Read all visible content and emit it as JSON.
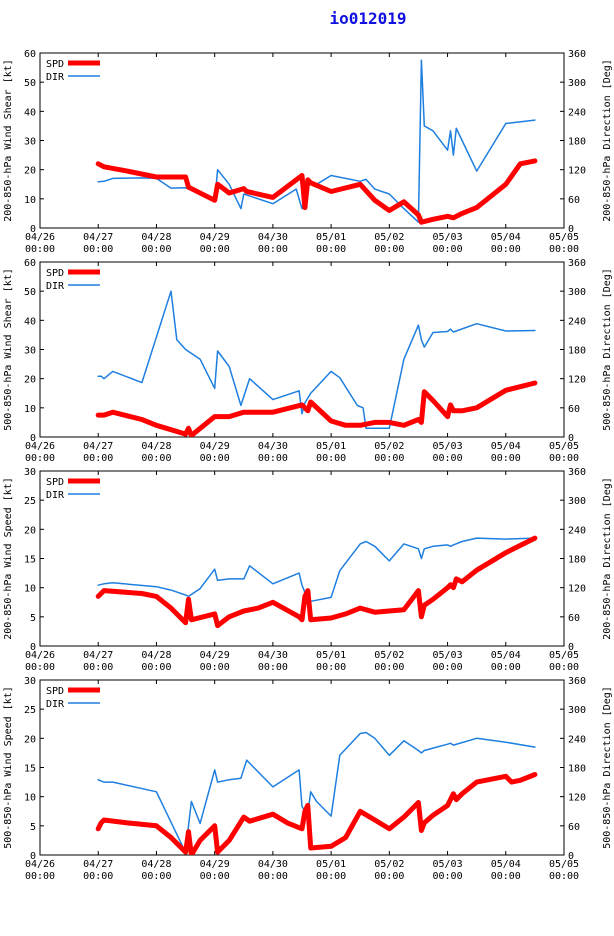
{
  "title": "io012019",
  "colors": {
    "spd": "#ff0000",
    "dir": "#1e7fe0",
    "axis": "#000000"
  },
  "legend": {
    "spd": "SPD",
    "dir": "DIR"
  },
  "x_ticks": [
    {
      "date": "04/26",
      "time": "00:00"
    },
    {
      "date": "04/27",
      "time": "00:00"
    },
    {
      "date": "04/28",
      "time": "00:00"
    },
    {
      "date": "04/29",
      "time": "00:00"
    },
    {
      "date": "04/30",
      "time": "00:00"
    },
    {
      "date": "05/01",
      "time": "00:00"
    },
    {
      "date": "05/02",
      "time": "00:00"
    },
    {
      "date": "05/03",
      "time": "00:00"
    },
    {
      "date": "05/04",
      "time": "00:00"
    },
    {
      "date": "05/05",
      "time": "00:00"
    }
  ],
  "chart_data": [
    {
      "type": "line",
      "ylabel_left": "200-850-hPa Wind Shear [kt]",
      "ylabel_right": "200-850-hPa Direction [Deg]",
      "xlim": [
        0,
        9
      ],
      "ylim": [
        0,
        60
      ],
      "y2lim": [
        0,
        360
      ],
      "yticks": [
        0,
        10,
        20,
        30,
        40,
        50,
        60
      ],
      "y2ticks": [
        0,
        60,
        120,
        180,
        240,
        300,
        360
      ],
      "series": [
        {
          "name": "SPD",
          "axis": "left",
          "x": [
            1.0,
            1.1,
            1.5,
            2.0,
            2.5,
            2.55,
            3.0,
            3.05,
            3.25,
            3.5,
            3.55,
            4.0,
            4.5,
            4.55,
            4.6,
            4.65,
            5.0,
            5.5,
            5.75,
            6.0,
            6.25,
            6.5,
            6.55,
            6.75,
            7.0,
            7.1,
            7.25,
            7.5,
            8.0,
            8.25,
            8.5
          ],
          "y": [
            22,
            21,
            19.5,
            17.5,
            17.5,
            14,
            9.5,
            15,
            12,
            13.5,
            12.5,
            10.5,
            18,
            7,
            16.5,
            15.5,
            12.5,
            15,
            9.5,
            6,
            9,
            4.5,
            2,
            3,
            4,
            3.5,
            5,
            7,
            15,
            22,
            23
          ]
        },
        {
          "name": "DIR",
          "axis": "right",
          "x": [
            1.0,
            1.1,
            1.25,
            1.75,
            2.0,
            2.25,
            2.5,
            2.75,
            3.0,
            3.05,
            3.25,
            3.45,
            3.5,
            4.0,
            4.4,
            4.5,
            4.55,
            4.6,
            4.65,
            4.75,
            5.0,
            5.5,
            5.6,
            5.75,
            6.0,
            6.25,
            6.5,
            6.55,
            6.6,
            6.75,
            7.0,
            7.05,
            7.1,
            7.15,
            7.25,
            7.5,
            8.0,
            8.5
          ],
          "y": [
            95,
            96,
            102,
            103,
            102,
            82,
            83,
            70,
            55,
            120,
            90,
            40,
            70,
            50,
            80,
            40,
            60,
            80,
            96,
            90,
            108,
            96,
            100,
            80,
            70,
            40,
            12,
            345,
            210,
            200,
            160,
            200,
            150,
            205,
            180,
            117,
            215,
            222
          ]
        }
      ]
    },
    {
      "type": "line",
      "ylabel_left": "500-850-hPa Wind Shear [kt]",
      "ylabel_right": "500-850-hPa Direction [Deg]",
      "xlim": [
        0,
        9
      ],
      "ylim": [
        0,
        60
      ],
      "y2lim": [
        0,
        360
      ],
      "yticks": [
        0,
        10,
        20,
        30,
        40,
        50,
        60
      ],
      "y2ticks": [
        0,
        60,
        120,
        180,
        240,
        300,
        360
      ],
      "series": [
        {
          "name": "SPD",
          "axis": "left",
          "x": [
            1.0,
            1.1,
            1.25,
            1.75,
            2.0,
            2.25,
            2.5,
            2.55,
            2.6,
            3.0,
            3.25,
            3.5,
            3.75,
            4.0,
            4.5,
            4.6,
            4.65,
            5.0,
            5.25,
            5.5,
            5.75,
            6.0,
            6.25,
            6.5,
            6.55,
            6.6,
            6.75,
            7.0,
            7.05,
            7.1,
            7.25,
            7.5,
            8.0,
            8.5
          ],
          "y": [
            7.5,
            7.5,
            8.5,
            6,
            4,
            2.5,
            1,
            3,
            0.5,
            7,
            7,
            8.5,
            8.5,
            8.5,
            11,
            9,
            12,
            5.5,
            4,
            4,
            5,
            5,
            4,
            6,
            5,
            15.5,
            12.5,
            7,
            11,
            9,
            9,
            10,
            16,
            18.5
          ]
        },
        {
          "name": "DIR",
          "axis": "right",
          "x": [
            1.0,
            1.05,
            1.1,
            1.25,
            1.75,
            2.25,
            2.35,
            2.5,
            2.75,
            3.0,
            3.05,
            3.25,
            3.45,
            3.6,
            4.0,
            4.45,
            4.5,
            4.55,
            4.6,
            4.65,
            5.0,
            5.15,
            5.45,
            5.55,
            5.6,
            5.75,
            6.0,
            6.25,
            6.5,
            6.55,
            6.6,
            6.75,
            7.0,
            7.05,
            7.1,
            7.5,
            8.0,
            8.5
          ],
          "y": [
            125,
            125,
            120,
            135,
            112,
            300,
            200,
            180,
            160,
            100,
            177,
            145,
            65,
            120,
            77,
            95,
            48,
            70,
            80,
            90,
            135,
            122,
            65,
            60,
            18,
            18,
            18,
            160,
            230,
            200,
            185,
            215,
            217,
            222,
            216,
            233,
            218,
            219
          ]
        }
      ]
    },
    {
      "type": "line",
      "ylabel_left": "200-850-hPa Wind Speed [kt]",
      "ylabel_right": "200-850-hPa Direction [Deg]",
      "xlim": [
        0,
        9
      ],
      "ylim": [
        0,
        30
      ],
      "y2lim": [
        0,
        360
      ],
      "yticks": [
        0,
        5,
        10,
        15,
        20,
        25,
        30
      ],
      "y2ticks": [
        0,
        60,
        120,
        180,
        240,
        300,
        360
      ],
      "series": [
        {
          "name": "SPD",
          "axis": "left",
          "x": [
            1.0,
            1.05,
            1.1,
            1.75,
            2.0,
            2.25,
            2.5,
            2.55,
            2.6,
            3.0,
            3.05,
            3.25,
            3.5,
            3.75,
            4.0,
            4.45,
            4.5,
            4.55,
            4.6,
            4.65,
            5.0,
            5.25,
            5.5,
            5.75,
            6.0,
            6.25,
            6.5,
            6.55,
            6.6,
            6.75,
            7.0,
            7.05,
            7.1,
            7.15,
            7.25,
            7.5,
            8.0,
            8.5
          ],
          "y": [
            8.5,
            9,
            9.5,
            9,
            8.5,
            6.5,
            4,
            8,
            4.5,
            5.5,
            3.5,
            5,
            6,
            6.5,
            7.5,
            5,
            4.5,
            8.5,
            9.5,
            4.5,
            4.8,
            5.5,
            6.5,
            5.8,
            6,
            6.2,
            9.5,
            5,
            7,
            8,
            10,
            10.5,
            10,
            11.5,
            11,
            13,
            16,
            18.5
          ]
        },
        {
          "name": "DIR",
          "axis": "right",
          "x": [
            1.0,
            1.1,
            1.25,
            2.0,
            2.25,
            2.5,
            2.55,
            2.75,
            3.0,
            3.05,
            3.25,
            3.5,
            3.6,
            4.0,
            4.45,
            4.5,
            4.55,
            4.6,
            4.65,
            5.0,
            5.15,
            5.5,
            5.6,
            5.75,
            6.0,
            6.25,
            6.5,
            6.55,
            6.6,
            6.75,
            7.0,
            7.05,
            7.1,
            7.25,
            7.5,
            8.0,
            8.5
          ],
          "y": [
            125,
            128,
            130,
            122,
            115,
            105,
            102,
            118,
            158,
            135,
            138,
            138,
            165,
            128,
            150,
            125,
            110,
            100,
            92,
            100,
            155,
            210,
            215,
            205,
            175,
            210,
            200,
            180,
            200,
            205,
            208,
            205,
            208,
            215,
            222,
            220,
            222
          ]
        }
      ]
    },
    {
      "type": "line",
      "ylabel_left": "500-850-hPa Wind Speed [kt]",
      "ylabel_right": "500-850-hPa Direction [Deg]",
      "xlim": [
        0,
        9
      ],
      "ylim": [
        0,
        30
      ],
      "y2lim": [
        0,
        360
      ],
      "yticks": [
        0,
        5,
        10,
        15,
        20,
        25,
        30
      ],
      "y2ticks": [
        0,
        60,
        120,
        180,
        240,
        300,
        360
      ],
      "series": [
        {
          "name": "SPD",
          "axis": "left",
          "x": [
            1.0,
            1.05,
            1.1,
            1.5,
            2.0,
            2.25,
            2.5,
            2.55,
            2.6,
            2.75,
            3.0,
            3.05,
            3.25,
            3.5,
            3.6,
            4.0,
            4.25,
            4.5,
            4.55,
            4.6,
            4.65,
            5.0,
            5.25,
            5.5,
            5.75,
            6.0,
            6.25,
            6.5,
            6.55,
            6.6,
            6.75,
            7.0,
            7.1,
            7.15,
            7.25,
            7.5,
            8.0,
            8.1,
            8.25,
            8.5
          ],
          "y": [
            4.5,
            5.5,
            6,
            5.5,
            5,
            3,
            0.5,
            4,
            0,
            2.5,
            5,
            0.5,
            2.5,
            6.5,
            5.8,
            7,
            5.5,
            4.5,
            7.5,
            8.5,
            1.2,
            1.5,
            3,
            7.5,
            6,
            4.5,
            6.5,
            9,
            4.2,
            5.5,
            6.8,
            8.5,
            10.5,
            9.5,
            10.5,
            12.5,
            13.5,
            12.5,
            12.8,
            13.8
          ]
        },
        {
          "name": "DIR",
          "axis": "right",
          "x": [
            1.0,
            1.05,
            1.1,
            1.25,
            2.0,
            2.5,
            2.55,
            2.6,
            2.75,
            3.0,
            3.05,
            3.25,
            3.45,
            3.55,
            4.0,
            4.45,
            4.5,
            4.55,
            4.6,
            4.65,
            4.75,
            5.0,
            5.15,
            5.5,
            5.6,
            5.75,
            6.0,
            6.25,
            6.5,
            6.55,
            6.6,
            6.75,
            7.0,
            7.05,
            7.1,
            7.5,
            8.0,
            8.5
          ],
          "y": [
            155,
            152,
            150,
            150,
            130,
            5,
            60,
            110,
            65,
            175,
            150,
            155,
            158,
            195,
            140,
            175,
            100,
            90,
            85,
            130,
            110,
            80,
            205,
            250,
            252,
            240,
            205,
            235,
            215,
            210,
            215,
            220,
            228,
            230,
            226,
            240,
            232,
            222
          ]
        }
      ]
    }
  ]
}
